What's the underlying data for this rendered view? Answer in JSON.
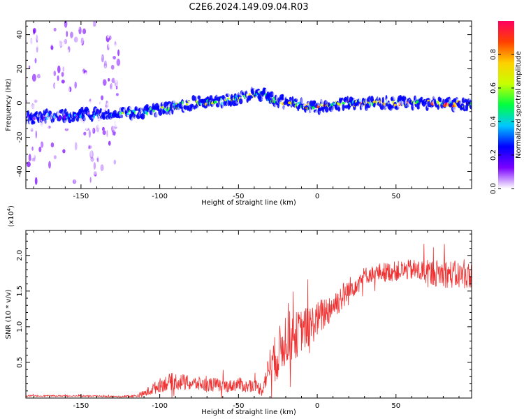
{
  "title": "C2E6.2024.149.09.04.R03",
  "chart_data": [
    {
      "type": "heatmap",
      "panel": "spectrogram",
      "xlabel": "Height of straight line (km)",
      "ylabel": "Frequency (Hz)",
      "xlim": [
        -185,
        98
      ],
      "ylim": [
        -50,
        48
      ],
      "x_ticks": [
        -150,
        -100,
        -50,
        0,
        50
      ],
      "x_tick_labels": [
        "-150",
        "-100",
        "-50",
        "0",
        "50"
      ],
      "y_ticks": [
        -40,
        -20,
        0,
        20,
        40
      ],
      "y_tick_labels": [
        "-40",
        "-20",
        "0",
        "20",
        "40"
      ],
      "ridge": {
        "x": [
          -185,
          -170,
          -150,
          -130,
          -110,
          -100,
          -90,
          -80,
          -70,
          -60,
          -50,
          -42,
          -35,
          -28,
          -20,
          -10,
          0,
          10,
          20,
          40,
          60,
          80,
          98
        ],
        "y": [
          -9,
          -8,
          -7,
          -6,
          -5,
          -4,
          -2,
          0,
          0.5,
          1,
          3,
          5,
          5,
          2,
          0,
          -1,
          -3,
          -1,
          0,
          0,
          0,
          0,
          -1
        ]
      },
      "noise_region_x": [
        -185,
        -125
      ],
      "colorbar": {
        "label": "Normalized spectral amplitude",
        "range": [
          0,
          1
        ],
        "ticks": [
          0.0,
          0.2,
          0.4,
          0.6,
          0.8
        ],
        "tick_labels": [
          "0.0",
          "0.2",
          "0.4",
          "0.6",
          "0.8"
        ],
        "colors": [
          "#ffffff",
          "#7a00ff",
          "#0000ff",
          "#00c8ff",
          "#00ff40",
          "#c8ff00",
          "#ffd000",
          "#ff4000",
          "#ff0060"
        ]
      }
    },
    {
      "type": "line",
      "panel": "snr",
      "xlabel": "Height of straight line (km)",
      "ylabel": "SNR (10 * v/v)",
      "scale_label": "(x10",
      "scale_exp": "4",
      "scale_close": ")",
      "xlim": [
        -185,
        98
      ],
      "ylim": [
        0,
        2.35
      ],
      "x_ticks": [
        -150,
        -100,
        -50,
        0,
        50
      ],
      "x_tick_labels": [
        "-150",
        "-100",
        "-50",
        "0",
        "50"
      ],
      "y_ticks": [
        0.5,
        1.0,
        1.5,
        2.0
      ],
      "y_tick_labels": [
        "0.5",
        "1.0",
        "1.5",
        "2.0"
      ],
      "line_color": "#f03030",
      "series": [
        {
          "name": "SNR",
          "x": [
            -185,
            -150,
            -125,
            -115,
            -110,
            -105,
            -100,
            -95,
            -90,
            -85,
            -80,
            -75,
            -70,
            -65,
            -60,
            -55,
            -50,
            -45,
            -40,
            -35,
            -32,
            -30,
            -25,
            -20,
            -15,
            -10,
            -5,
            0,
            5,
            10,
            15,
            20,
            25,
            30,
            35,
            40,
            50,
            60,
            70,
            80,
            90,
            98
          ],
          "mean": [
            0.03,
            0.03,
            0.02,
            0.03,
            0.06,
            0.12,
            0.18,
            0.22,
            0.24,
            0.22,
            0.2,
            0.2,
            0.18,
            0.19,
            0.17,
            0.17,
            0.2,
            0.16,
            0.18,
            0.12,
            0.32,
            0.5,
            0.6,
            0.85,
            0.85,
            0.95,
            1.0,
            1.1,
            1.2,
            1.3,
            1.4,
            1.5,
            1.62,
            1.72,
            1.74,
            1.76,
            1.78,
            1.8,
            1.76,
            1.75,
            1.72,
            1.72
          ],
          "spread": [
            0.01,
            0.01,
            0.01,
            0.02,
            0.05,
            0.08,
            0.1,
            0.12,
            0.12,
            0.12,
            0.1,
            0.1,
            0.1,
            0.1,
            0.09,
            0.09,
            0.1,
            0.09,
            0.08,
            0.1,
            0.15,
            0.25,
            0.35,
            0.4,
            0.35,
            0.3,
            0.3,
            0.25,
            0.25,
            0.2,
            0.2,
            0.2,
            0.14,
            0.12,
            0.12,
            0.14,
            0.14,
            0.15,
            0.18,
            0.2,
            0.2,
            0.18
          ]
        }
      ]
    }
  ]
}
